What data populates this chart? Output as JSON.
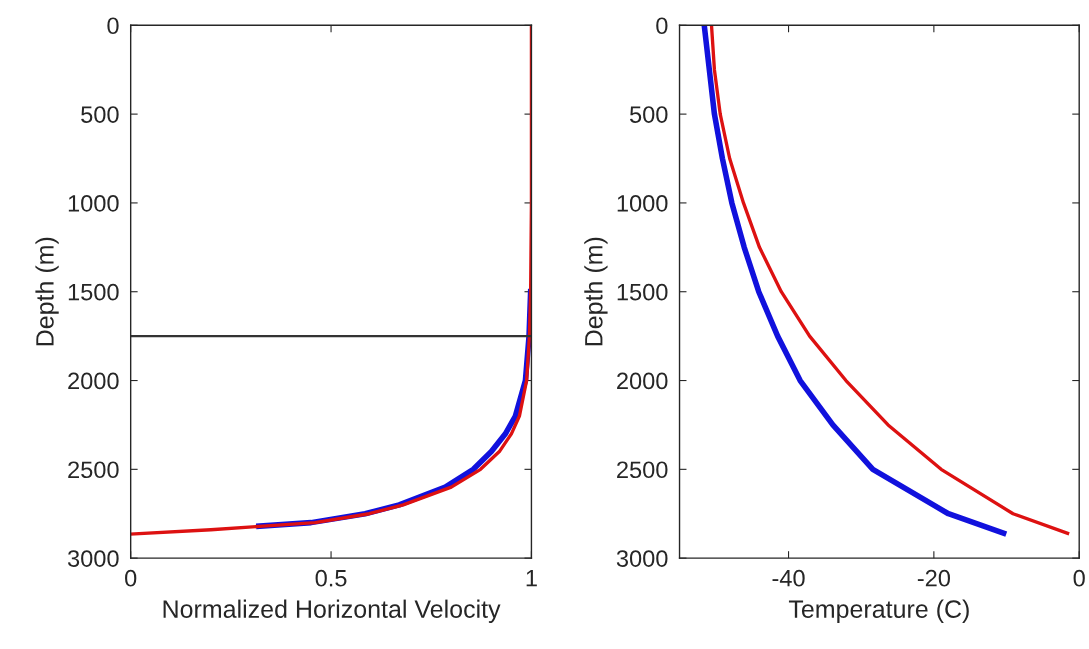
{
  "chart_data": [
    {
      "type": "line",
      "xlabel": "Normalized Horizontal Velocity",
      "ylabel": "Depth (m)",
      "xlim": [
        0,
        1
      ],
      "xticks": [
        0,
        0.5,
        1
      ],
      "ylim": [
        3000,
        0
      ],
      "yticks": [
        0,
        500,
        1000,
        1500,
        2000,
        2500,
        3000
      ],
      "grid": false,
      "legend": false,
      "line_style": "solid",
      "ref_lines": [
        {
          "axis": "y",
          "value": 1750,
          "color": "#333333"
        }
      ],
      "series": [
        {
          "color": "#1111dd",
          "x": [
            0.998,
            0.994,
            0.985,
            0.96,
            0.935,
            0.9,
            0.855,
            0.785,
            0.67,
            0.585,
            0.45,
            0.32
          ],
          "values": [
            1500,
            1750,
            2000,
            2200,
            2300,
            2400,
            2500,
            2600,
            2700,
            2750,
            2800,
            2820
          ]
        },
        {
          "color": "#dd1111",
          "x": [
            1.0,
            1.0,
            0.998,
            0.995,
            0.988,
            0.97,
            0.95,
            0.92,
            0.873,
            0.8,
            0.68,
            0.595,
            0.46,
            0.33,
            0.2,
            0
          ],
          "values": [
            0,
            1000,
            1500,
            1750,
            2000,
            2200,
            2300,
            2400,
            2500,
            2600,
            2700,
            2750,
            2800,
            2820,
            2840,
            2865
          ]
        }
      ]
    },
    {
      "type": "line",
      "xlabel": "Temperature (C)",
      "ylabel": "Depth (m)",
      "xlim": [
        -55,
        0
      ],
      "xticks": [
        -40,
        -20,
        0
      ],
      "ylim": [
        3000,
        0
      ],
      "yticks": [
        0,
        500,
        1000,
        1500,
        2000,
        2500,
        3000
      ],
      "grid": false,
      "legend": false,
      "line_style": "solid",
      "series": [
        {
          "color": "#1111dd",
          "x": [
            -51.6,
            -50.9,
            -50.2,
            -49.1,
            -47.8,
            -46.1,
            -44.1,
            -41.5,
            -38.4,
            -33.9,
            -28.4,
            -18.0,
            -10.4
          ],
          "values": [
            0,
            250,
            500,
            750,
            1000,
            1250,
            1500,
            1750,
            2000,
            2250,
            2500,
            2750,
            2860
          ]
        },
        {
          "color": "#dd1111",
          "x": [
            -50.6,
            -50.2,
            -49.4,
            -48.1,
            -46.2,
            -44.0,
            -41.0,
            -37.1,
            -32.1,
            -26.3,
            -19.0,
            -9.1,
            -1.6
          ],
          "values": [
            0,
            250,
            500,
            750,
            1000,
            1250,
            1500,
            1750,
            2000,
            2250,
            2500,
            2750,
            2860
          ]
        }
      ]
    }
  ]
}
